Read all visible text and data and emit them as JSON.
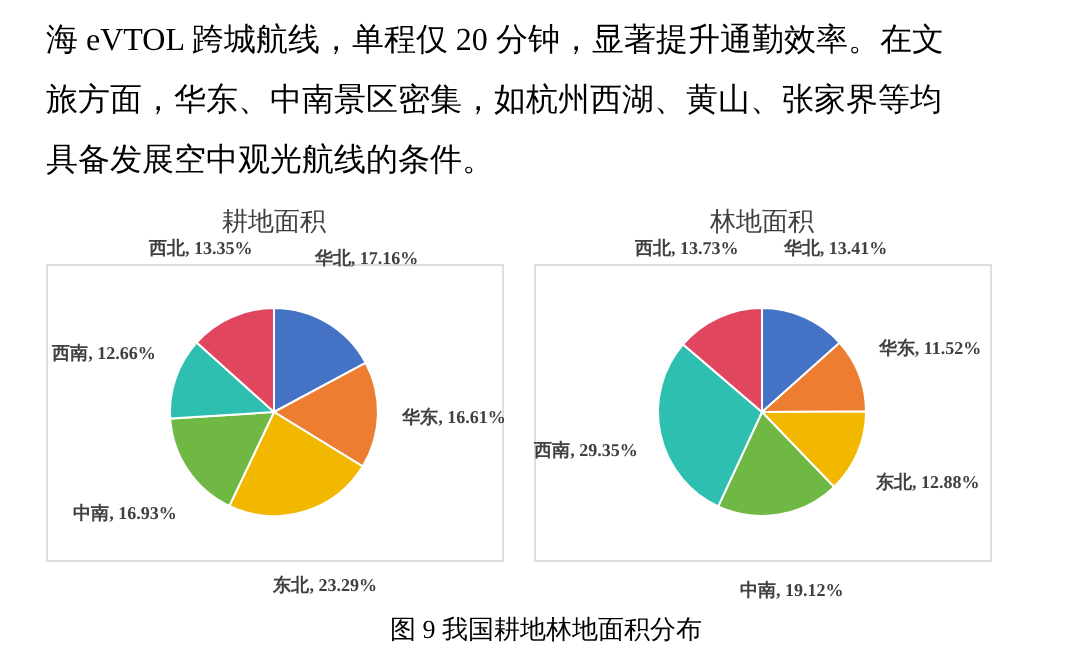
{
  "chart_data": [
    {
      "type": "pie",
      "title": "耕地面积",
      "categories": [
        "华北",
        "华东",
        "东北",
        "中南",
        "西南",
        "西北"
      ],
      "values": [
        17.16,
        16.61,
        23.29,
        16.93,
        12.66,
        13.35
      ],
      "value_labels": [
        "17.16%",
        "16.61%",
        "23.29%",
        "16.93%",
        "12.66%",
        "13.35%"
      ],
      "colors": [
        "#4472c4",
        "#ed7d31",
        "#f2b800",
        "#70b844",
        "#2ebfb0",
        "#e0475f"
      ],
      "annotations": [
        "海 eVTOL 跨城航线，单程仅 20 分钟，显著提升通勤效率。在文",
        "旅方面，华东、中南景区密集，如杭州西湖、黄山、张家界等均",
        "具备发展空中观光航线的条件。",
        "图 9 我国耕地林地面积分布"
      ]
    },
    {
      "type": "pie",
      "title": "林地面积",
      "categories": [
        "华北",
        "华东",
        "东北",
        "中南",
        "西南",
        "西北"
      ],
      "values": [
        13.41,
        11.52,
        12.88,
        19.12,
        29.35,
        13.73
      ],
      "value_labels": [
        "13.41%",
        "11.52%",
        "12.88%",
        "19.12%",
        "29.35%",
        "13.73%"
      ],
      "colors": [
        "#4472c4",
        "#ed7d31",
        "#f2b800",
        "#70b844",
        "#2ebfb0",
        "#e0475f"
      ]
    }
  ]
}
